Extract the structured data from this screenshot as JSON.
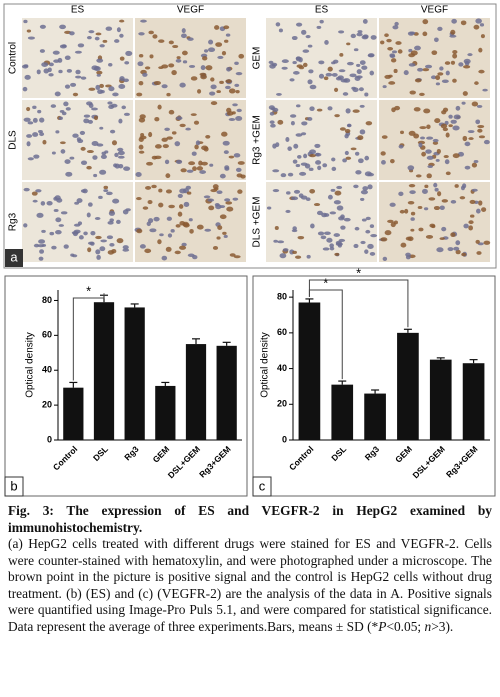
{
  "panel_a": {
    "label": "a",
    "left_columns": [
      "ES",
      "VEGF"
    ],
    "left_rows": [
      "Control",
      "DLS",
      "Rg3"
    ],
    "right_columns": [
      "ES",
      "VEGF"
    ],
    "right_rows": [
      "GEM",
      "Rg3 +GEM",
      "DLS +GEM"
    ]
  },
  "chart_data": [
    {
      "type": "bar",
      "panel_label": "b",
      "y_label": "Optical density",
      "categories": [
        "Control",
        "DSL",
        "Rg3",
        "GEM",
        "DSL+GEM",
        "Rg3+GEM"
      ],
      "values": [
        30,
        79,
        76,
        31,
        55,
        54
      ],
      "errors": [
        3,
        4,
        2,
        2,
        3,
        2
      ],
      "color": "#111111",
      "ylim": [
        0,
        86
      ],
      "yticks": [
        0,
        20,
        40,
        60,
        80
      ],
      "annotations": [
        "*"
      ]
    },
    {
      "type": "bar",
      "panel_label": "c",
      "y_label": "Optical density",
      "categories": [
        "Control",
        "DSL",
        "Rg3",
        "GEM",
        "DSL+GEM",
        "Rg3+GEM"
      ],
      "values": [
        77,
        31,
        26,
        60,
        45,
        43
      ],
      "errors": [
        2,
        2,
        2,
        2,
        1,
        2
      ],
      "color": "#111111",
      "ylim": [
        0,
        84
      ],
      "yticks": [
        0,
        20,
        40,
        60,
        80
      ],
      "annotations": [
        "*",
        "*"
      ]
    }
  ],
  "caption": {
    "title": "Fig. 3: The expression of ES and VEGFR-2 in HepG2 examined by immunohistochemistry.",
    "body": [
      {
        "text": "(a) HepG2 cells treated with different drugs were stained for ES and VEGFR-2. Cells were counter-stained with hematoxylin, and were photographed under a microscope. The brown point in the picture is positive signal and the control is HepG2 cells without drug treatment. (b) (ES) and (c) (VEGFR-2) are the analysis of the data in A. Positive signals were quantified using Image-Pro Puls 5.1, and were compared for statistical significance. Data represent the average of three experiments.Bars, means ± SD (*",
        "italic": false
      },
      {
        "text": "P",
        "italic": true
      },
      {
        "text": "<0.05; ",
        "italic": false
      },
      {
        "text": "n",
        "italic": true
      },
      {
        "text": ">3).",
        "italic": false
      }
    ]
  }
}
